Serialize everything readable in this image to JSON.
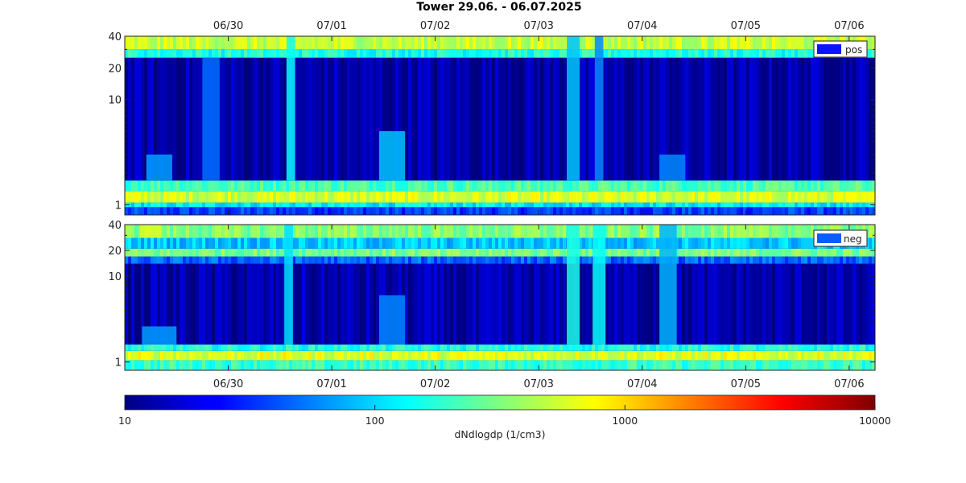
{
  "chart_data": {
    "type": "heatmap",
    "title": "Tower 29.06.  -  06.07.2025",
    "time_range": [
      "2025-06-29T00:00",
      "2025-07-06T06:00"
    ],
    "x_tick_labels": [
      {
        "date": "2025-06-30",
        "label": "06/30"
      },
      {
        "date": "2025-07-01",
        "label": "07/01"
      },
      {
        "date": "2025-07-02",
        "label": "07/02"
      },
      {
        "date": "2025-07-03",
        "label": "07/03"
      },
      {
        "date": "2025-07-04",
        "label": "07/04"
      },
      {
        "date": "2025-07-05",
        "label": "07/05"
      },
      {
        "date": "2025-07-06",
        "label": "07/06"
      }
    ],
    "y_scale": "log",
    "ylim": [
      0.8,
      40
    ],
    "y_ticks": [
      {
        "value": 1,
        "label": "1"
      },
      {
        "value": 10,
        "label": "10"
      },
      {
        "value": 20,
        "label": "20"
      },
      {
        "value": 40,
        "label": "40"
      }
    ],
    "panels": [
      {
        "legend": "pos",
        "legend_color": "#0a14ff",
        "bands": [
          {
            "ymin": 0.8,
            "ymax": 0.95,
            "level": 35
          },
          {
            "ymin": 0.95,
            "ymax": 1.05,
            "level": 120
          },
          {
            "ymin": 1.05,
            "ymax": 1.35,
            "level": 550
          },
          {
            "ymin": 1.35,
            "ymax": 1.7,
            "level": 220
          },
          {
            "ymin": 1.7,
            "ymax": 25,
            "level": 13
          },
          {
            "ymin": 25,
            "ymax": 30,
            "level": 160
          },
          {
            "ymin": 30,
            "ymax": 40,
            "level": 500
          }
        ],
        "events": [
          {
            "t": "2025-06-29T08:00",
            "width_h": 6,
            "ymin": 1.7,
            "ymax": 3,
            "level": 70
          },
          {
            "t": "2025-06-29T20:00",
            "width_h": 4,
            "ymin": 1.7,
            "ymax": 25,
            "level": 50
          },
          {
            "t": "2025-06-30T14:30",
            "width_h": 2,
            "ymin": 1.7,
            "ymax": 40,
            "level": 140
          },
          {
            "t": "2025-07-01T14:00",
            "width_h": 6,
            "ymin": 1.7,
            "ymax": 5,
            "level": 90
          },
          {
            "t": "2025-07-03T08:00",
            "width_h": 3,
            "ymin": 1.7,
            "ymax": 40,
            "level": 90
          },
          {
            "t": "2025-07-03T14:00",
            "width_h": 2,
            "ymin": 1.7,
            "ymax": 40,
            "level": 60
          },
          {
            "t": "2025-07-04T07:00",
            "width_h": 6,
            "ymin": 1.7,
            "ymax": 3,
            "level": 60
          }
        ]
      },
      {
        "legend": "neg",
        "legend_color": "#0b5cff",
        "bands": [
          {
            "ymin": 0.8,
            "ymax": 1.05,
            "level": 190
          },
          {
            "ymin": 1.05,
            "ymax": 1.35,
            "level": 600
          },
          {
            "ymin": 1.35,
            "ymax": 1.6,
            "level": 160
          },
          {
            "ymin": 1.6,
            "ymax": 14,
            "level": 13
          },
          {
            "ymin": 14,
            "ymax": 17,
            "level": 45
          },
          {
            "ymin": 17,
            "ymax": 21,
            "level": 300
          },
          {
            "ymin": 21,
            "ymax": 28,
            "level": 90
          },
          {
            "ymin": 28,
            "ymax": 40,
            "level": 320
          }
        ],
        "events": [
          {
            "t": "2025-06-29T06:00",
            "width_h": 5,
            "ymin": 28,
            "ymax": 40,
            "level": 600
          },
          {
            "t": "2025-06-29T08:00",
            "width_h": 8,
            "ymin": 1.6,
            "ymax": 2.6,
            "level": 70
          },
          {
            "t": "2025-06-30T14:00",
            "width_h": 2,
            "ymin": 1.6,
            "ymax": 40,
            "level": 110
          },
          {
            "t": "2025-07-01T14:00",
            "width_h": 6,
            "ymin": 1.6,
            "ymax": 6,
            "level": 60
          },
          {
            "t": "2025-07-03T08:00",
            "width_h": 3,
            "ymin": 1.6,
            "ymax": 40,
            "level": 160
          },
          {
            "t": "2025-07-03T14:00",
            "width_h": 3,
            "ymin": 1.6,
            "ymax": 40,
            "level": 140
          },
          {
            "t": "2025-07-04T06:00",
            "width_h": 4,
            "ymin": 1.6,
            "ymax": 40,
            "level": 80
          }
        ]
      }
    ],
    "colorbar": {
      "scale": "log",
      "range": [
        10,
        10000
      ],
      "colormap": "jet",
      "ticks": [
        "10",
        "100",
        "1000",
        "10000"
      ],
      "label": "dNdlogdp (1/cm3)"
    }
  }
}
